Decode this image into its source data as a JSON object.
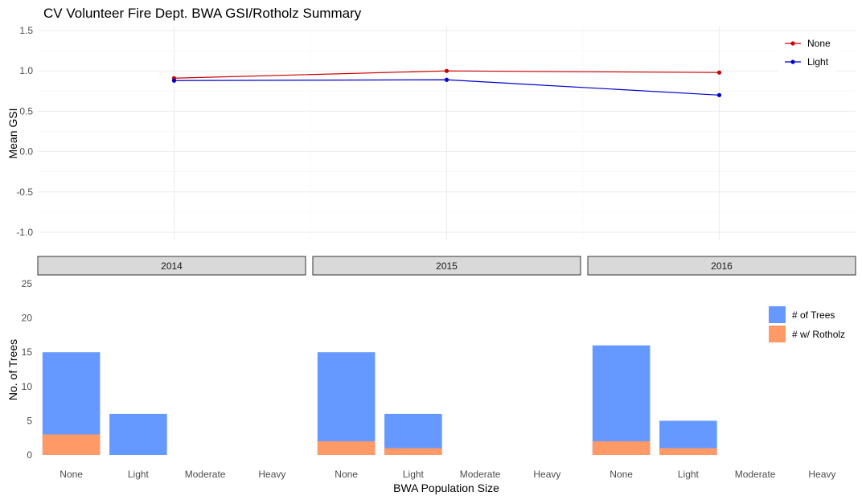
{
  "title": "CV Volunteer Fire Dept. BWA GSI/Rotholz Summary",
  "chart_data": [
    {
      "type": "line",
      "title": "CV Volunteer Fire Dept. BWA GSI/Rotholz Summary",
      "xlabel": "",
      "ylabel": "Mean GSI",
      "x": [
        "2014",
        "2015",
        "2016"
      ],
      "xlim": [
        2013.5,
        2016.5
      ],
      "ylim": [
        -1.1,
        1.55
      ],
      "yticks": [
        "-1.0",
        "-0.5",
        "0.0",
        "0.5",
        "1.0",
        "1.5"
      ],
      "grid": true,
      "legend": "top-right",
      "series": [
        {
          "name": "None",
          "color": "#cc0000",
          "values": [
            0.91,
            1.0,
            0.98
          ]
        },
        {
          "name": "Light",
          "color": "#0000cc",
          "values": [
            0.88,
            0.89,
            0.7
          ]
        }
      ]
    },
    {
      "type": "bar",
      "xlabel": "BWA Population Size",
      "ylabel": "No. of Trees",
      "facets": [
        "2014",
        "2015",
        "2016"
      ],
      "categories": [
        "None",
        "Light",
        "Moderate",
        "Heavy"
      ],
      "ylim": [
        0,
        25
      ],
      "yticks": [
        "0",
        "5",
        "10",
        "15",
        "20",
        "25"
      ],
      "grid": false,
      "legend": "right",
      "series": [
        {
          "name": "# of Trees",
          "color": "#6699ff",
          "values": [
            [
              15,
              6,
              0,
              0
            ],
            [
              15,
              6,
              0,
              0
            ],
            [
              16,
              5,
              0,
              0
            ]
          ]
        },
        {
          "name": "# w/ Rotholz",
          "color": "#ff9966",
          "values": [
            [
              3,
              0,
              0,
              0
            ],
            [
              2,
              1,
              0,
              0
            ],
            [
              2,
              1,
              0,
              0
            ]
          ]
        }
      ]
    }
  ]
}
